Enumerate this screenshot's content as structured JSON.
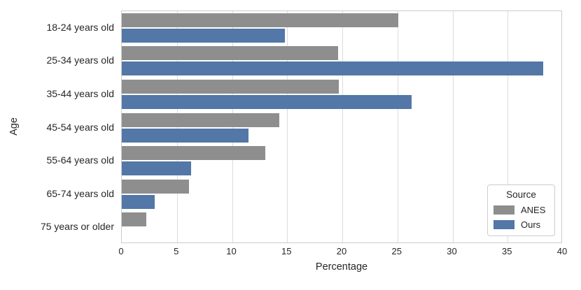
{
  "chart_data": {
    "type": "bar",
    "orientation": "horizontal",
    "title": "",
    "xlabel": "Percentage",
    "ylabel": "Age",
    "xlim": [
      0,
      40
    ],
    "xticks": [
      0,
      5,
      10,
      15,
      20,
      25,
      30,
      35,
      40
    ],
    "grid": "vertical gridlines at x ticks, light gray, whitegrid style",
    "categories": [
      "18-24 years old",
      "25-34 years old",
      "35-44 years old",
      "45-54 years old",
      "55-64 years old",
      "65-74 years old",
      "75 years or older"
    ],
    "series": [
      {
        "name": "ANES",
        "color": "#8e8e8e",
        "values": [
          25.1,
          19.6,
          19.7,
          14.3,
          13.0,
          6.1,
          2.2
        ]
      },
      {
        "name": "Ours",
        "color": "#5377a7",
        "values": [
          14.8,
          38.2,
          26.3,
          11.5,
          6.3,
          3.0,
          0
        ]
      }
    ],
    "legend": {
      "title": "Source",
      "position": "lower right"
    }
  },
  "colors": {
    "background": "#ffffff",
    "gridline": "#dcdcdc",
    "spine": "#cccccc",
    "text": "#262626"
  }
}
